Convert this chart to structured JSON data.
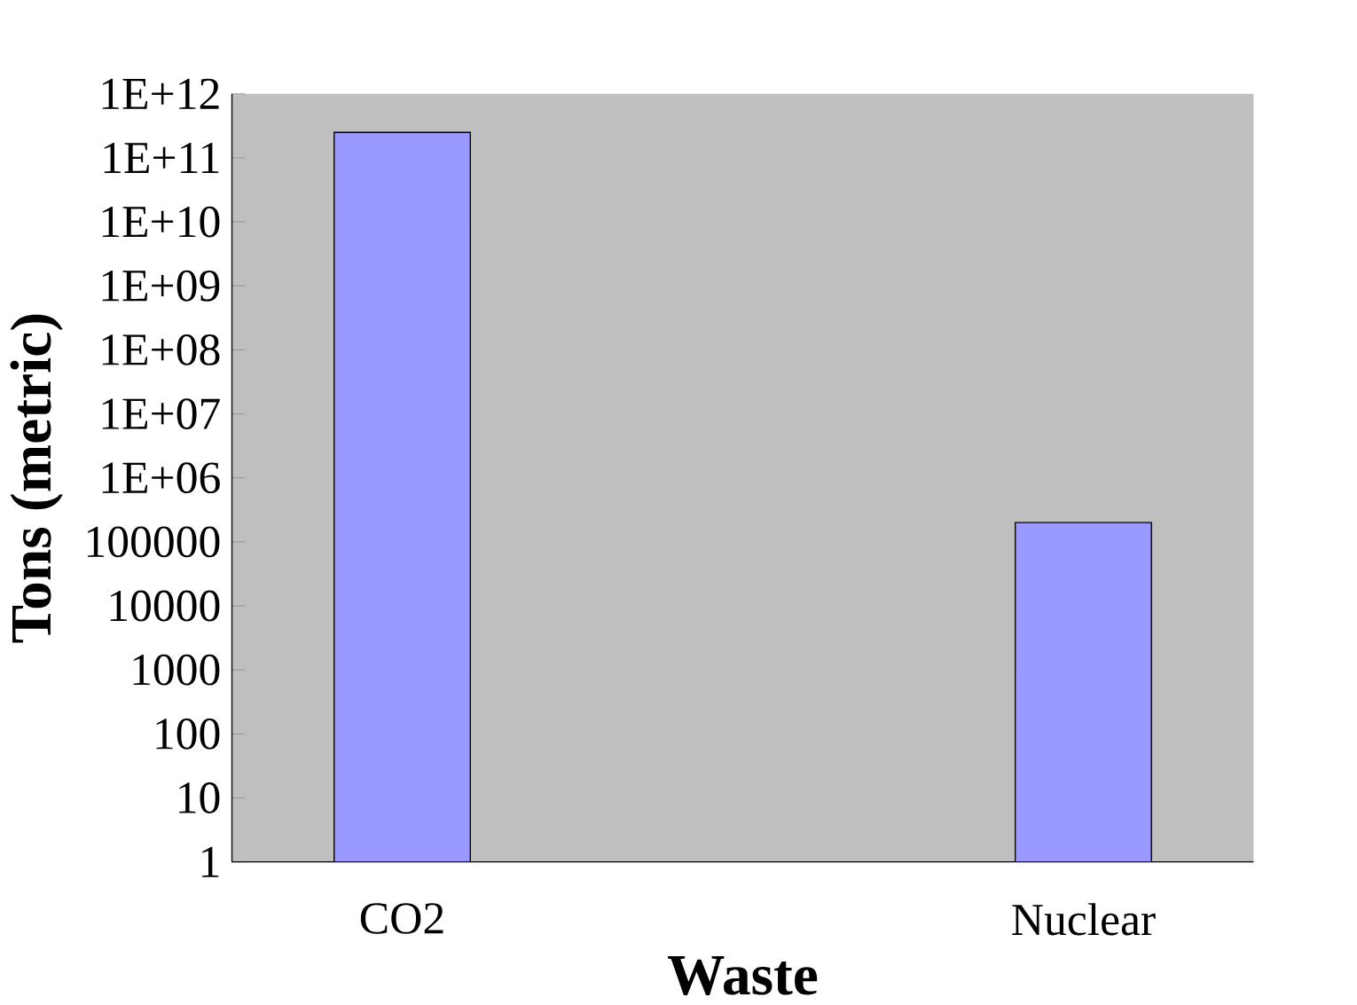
{
  "chart_data": {
    "type": "bar",
    "xlabel": "Waste",
    "ylabel": "Tons (metric)",
    "categories": [
      "CO2",
      null,
      "Nuclear"
    ],
    "values": [
      250000000000.0,
      null,
      200000.0
    ],
    "color": "#9999ff",
    "log": "y",
    "ylim": [
      1,
      1000000000000.0
    ],
    "yticks": [
      1,
      10,
      100,
      1000,
      10000,
      100000,
      {
        "value": 1000000.0,
        "label": "1E+06"
      },
      {
        "value": 10000000.0,
        "label": "1E+07"
      },
      {
        "value": 100000000.0,
        "label": "1E+08"
      },
      {
        "value": 1000000000.0,
        "label": "1E+09"
      },
      {
        "value": 10000000000.0,
        "label": "1E+10"
      },
      {
        "value": 100000000000.0,
        "label": "1E+11"
      },
      {
        "value": 1000000000000.0,
        "label": "1E+12"
      }
    ],
    "grid": false
  }
}
